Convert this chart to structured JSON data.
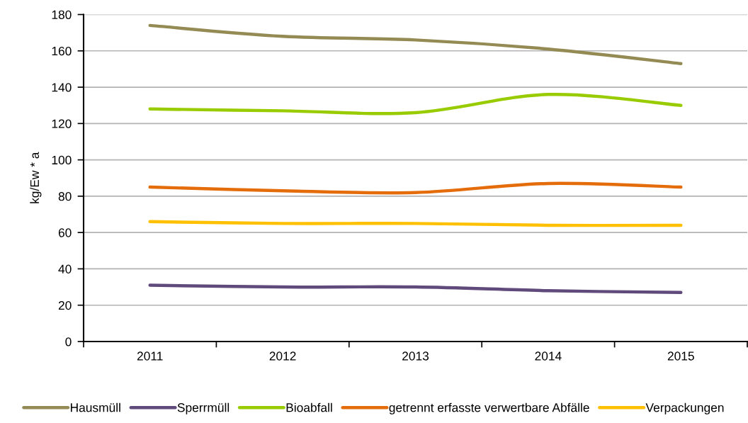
{
  "chart_data": {
    "type": "line",
    "ylabel": "kg/Ew * a",
    "categories": [
      "2011",
      "2012",
      "2013",
      "2014",
      "2015"
    ],
    "series": [
      {
        "name": "Hausmüll",
        "color": "#948a54",
        "values": [
          174,
          168,
          166,
          161,
          153
        ]
      },
      {
        "name": "Sperrmüll",
        "color": "#604a7b",
        "values": [
          31,
          30,
          30,
          28,
          27
        ]
      },
      {
        "name": "Bioabfall",
        "color": "#99cc00",
        "values": [
          128,
          127,
          126,
          136,
          130
        ]
      },
      {
        "name": "getrennt erfasste verwertbare Abfälle",
        "color": "#e46c0a",
        "values": [
          85,
          83,
          82,
          87,
          85
        ]
      },
      {
        "name": "Verpackungen",
        "color": "#ffc000",
        "values": [
          66,
          65,
          65,
          64,
          64
        ]
      }
    ],
    "ylim": [
      0,
      180
    ],
    "yticks": [
      0,
      20,
      40,
      60,
      80,
      100,
      120,
      140,
      160,
      180
    ],
    "grid": "y",
    "legend": "bottom"
  }
}
